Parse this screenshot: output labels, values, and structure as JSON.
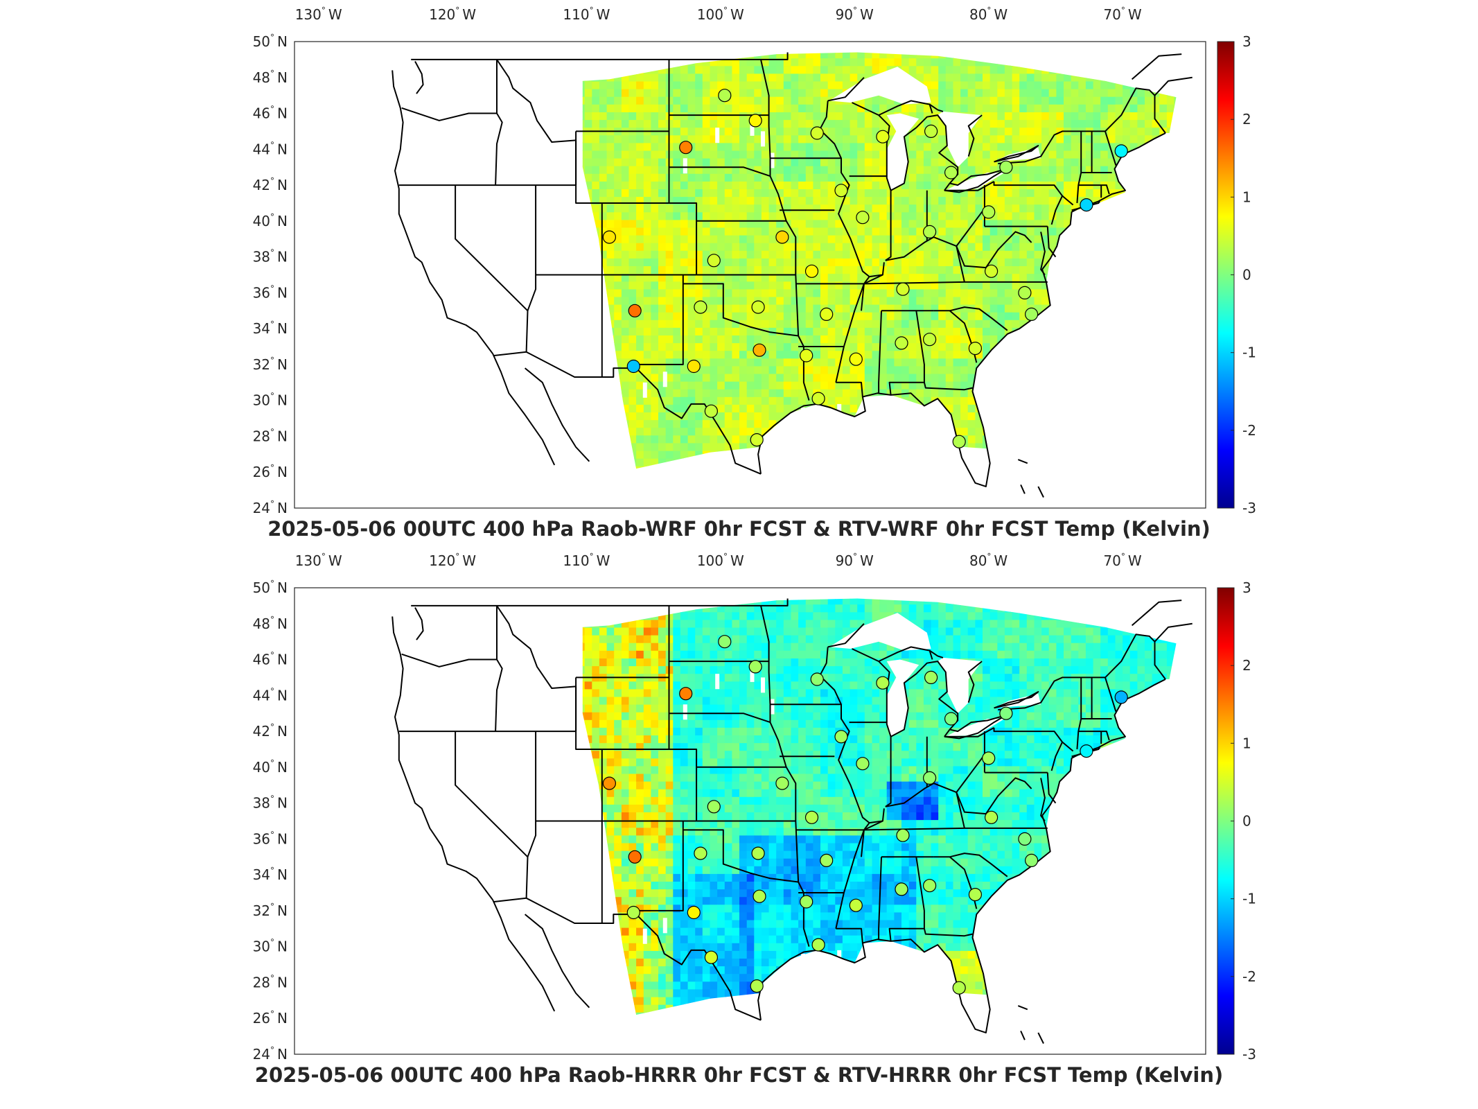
{
  "colors": {
    "jet": [
      "#00008f",
      "#0000ff",
      "#0080ff",
      "#00ffff",
      "#80ff80",
      "#ffff00",
      "#ff8000",
      "#ff0000",
      "#800000"
    ],
    "state_lines": "#000000",
    "frame": "#262626"
  },
  "axes": {
    "lon_ticks": [
      {
        "deg": "130",
        "hem": "W"
      },
      {
        "deg": "120",
        "hem": "W"
      },
      {
        "deg": "110",
        "hem": "W"
      },
      {
        "deg": "100",
        "hem": "W"
      },
      {
        "deg": "90",
        "hem": "W"
      },
      {
        "deg": "80",
        "hem": "W"
      },
      {
        "deg": "70",
        "hem": "W"
      }
    ],
    "lat_ticks": [
      {
        "deg": "50",
        "hem": "N"
      },
      {
        "deg": "48",
        "hem": "N"
      },
      {
        "deg": "46",
        "hem": "N"
      },
      {
        "deg": "44",
        "hem": "N"
      },
      {
        "deg": "42",
        "hem": "N"
      },
      {
        "deg": "40",
        "hem": "N"
      },
      {
        "deg": "38",
        "hem": "N"
      },
      {
        "deg": "36",
        "hem": "N"
      },
      {
        "deg": "34",
        "hem": "N"
      },
      {
        "deg": "32",
        "hem": "N"
      },
      {
        "deg": "30",
        "hem": "N"
      },
      {
        "deg": "28",
        "hem": "N"
      },
      {
        "deg": "26",
        "hem": "N"
      },
      {
        "deg": "24",
        "hem": "N"
      }
    ]
  },
  "colorbar": {
    "ticks": [
      "3",
      "2",
      "1",
      "0",
      "-1",
      "-2",
      "-3"
    ],
    "range": [
      -3,
      3
    ]
  },
  "panels": [
    {
      "title": "2025-05-06 00UTC 400 hPa Raob-WRF 0hr FCST & RTV-WRF 0hr FCST Temp (Kelvin)",
      "field_bias": 0.35
    },
    {
      "title": "2025-05-06 00UTC 400 hPa Raob-HRRR 0hr FCST & RTV-HRRR 0hr FCST Temp (Kelvin)",
      "field_bias": -0.45
    }
  ],
  "chart_data": {
    "type": "scatter",
    "x_unit": "longitude (deg W)",
    "y_unit": "latitude (deg N)",
    "xlim": [
      -132,
      -64
    ],
    "ylim": [
      24,
      50
    ],
    "raob_stations": [
      {
        "lon": -99.9,
        "lat": 47.0,
        "wrf": 0.3,
        "hrrr": 0.1
      },
      {
        "lon": -97.6,
        "lat": 45.6,
        "wrf": 0.8,
        "hrrr": 0.2
      },
      {
        "lon": -93.0,
        "lat": 44.9,
        "wrf": 0.5,
        "hrrr": 0.1
      },
      {
        "lon": -88.1,
        "lat": 44.7,
        "wrf": 0.6,
        "hrrr": 0.3
      },
      {
        "lon": -84.5,
        "lat": 45.0,
        "wrf": 0.4,
        "hrrr": 0.2
      },
      {
        "lon": -102.8,
        "lat": 44.1,
        "wrf": 1.5,
        "hrrr": 1.5
      },
      {
        "lon": -83.0,
        "lat": 42.7,
        "wrf": 0.3,
        "hrrr": 0.0
      },
      {
        "lon": -91.2,
        "lat": 41.7,
        "wrf": 0.5,
        "hrrr": 0.2
      },
      {
        "lon": -70.3,
        "lat": 43.9,
        "wrf": -0.8,
        "hrrr": -1.2
      },
      {
        "lon": -78.9,
        "lat": 43.0,
        "wrf": 0.2,
        "hrrr": 0.0
      },
      {
        "lon": -72.9,
        "lat": 40.9,
        "wrf": -1.0,
        "hrrr": -0.8
      },
      {
        "lon": -89.6,
        "lat": 40.2,
        "wrf": 0.4,
        "hrrr": 0.2
      },
      {
        "lon": -80.2,
        "lat": 40.5,
        "wrf": 0.3,
        "hrrr": 0.2
      },
      {
        "lon": -108.5,
        "lat": 39.1,
        "wrf": 0.9,
        "hrrr": 1.4
      },
      {
        "lon": -95.6,
        "lat": 39.1,
        "wrf": 1.0,
        "hrrr": 0.2
      },
      {
        "lon": -84.6,
        "lat": 39.4,
        "wrf": 0.3,
        "hrrr": 0.1
      },
      {
        "lon": -100.7,
        "lat": 37.8,
        "wrf": 0.5,
        "hrrr": 0.2
      },
      {
        "lon": -93.4,
        "lat": 37.2,
        "wrf": 0.8,
        "hrrr": 0.3
      },
      {
        "lon": -86.6,
        "lat": 36.2,
        "wrf": 0.5,
        "hrrr": 0.2
      },
      {
        "lon": -80.0,
        "lat": 37.2,
        "wrf": 0.5,
        "hrrr": 0.3
      },
      {
        "lon": -77.5,
        "lat": 36.0,
        "wrf": 0.3,
        "hrrr": 0.0
      },
      {
        "lon": -106.6,
        "lat": 35.0,
        "wrf": 1.6,
        "hrrr": 1.6
      },
      {
        "lon": -101.7,
        "lat": 35.2,
        "wrf": 0.4,
        "hrrr": 0.3
      },
      {
        "lon": -97.4,
        "lat": 35.2,
        "wrf": 0.5,
        "hrrr": 0.3
      },
      {
        "lon": -92.3,
        "lat": 34.8,
        "wrf": 0.6,
        "hrrr": 0.2
      },
      {
        "lon": -77.0,
        "lat": 34.8,
        "wrf": 0.2,
        "hrrr": 0.1
      },
      {
        "lon": -97.3,
        "lat": 32.8,
        "wrf": 1.2,
        "hrrr": 0.3
      },
      {
        "lon": -93.8,
        "lat": 32.5,
        "wrf": 0.6,
        "hrrr": 0.2
      },
      {
        "lon": -90.1,
        "lat": 32.3,
        "wrf": 0.7,
        "hrrr": 0.4
      },
      {
        "lon": -86.7,
        "lat": 33.2,
        "wrf": 0.4,
        "hrrr": 0.2
      },
      {
        "lon": -84.6,
        "lat": 33.4,
        "wrf": 0.4,
        "hrrr": 0.2
      },
      {
        "lon": -81.2,
        "lat": 32.9,
        "wrf": 0.5,
        "hrrr": 0.3
      },
      {
        "lon": -106.7,
        "lat": 31.9,
        "wrf": -1.1,
        "hrrr": 0.3
      },
      {
        "lon": -102.2,
        "lat": 31.9,
        "wrf": 0.9,
        "hrrr": 0.8
      },
      {
        "lon": -100.9,
        "lat": 29.4,
        "wrf": 0.4,
        "hrrr": 0.5
      },
      {
        "lon": -92.9,
        "lat": 30.1,
        "wrf": 0.5,
        "hrrr": 0.3
      },
      {
        "lon": -97.5,
        "lat": 27.8,
        "wrf": 0.5,
        "hrrr": 0.3
      },
      {
        "lon": -82.4,
        "lat": 27.7,
        "wrf": 0.3,
        "hrrr": 0.3
      }
    ]
  }
}
